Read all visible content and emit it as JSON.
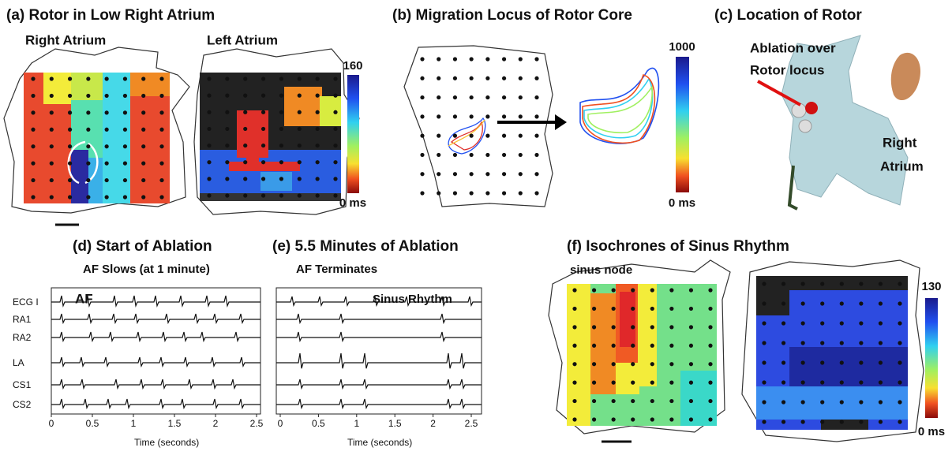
{
  "panel_a": {
    "title": "(a)  Rotor in Low Right Atrium",
    "map_left_label": "Right Atrium",
    "map_right_label": "Left Atrium",
    "colorbar_max": "160",
    "colorbar_min": "0 ms"
  },
  "panel_b": {
    "title": "(b)  Migration Locus of Rotor Core",
    "colorbar_max": "1000",
    "colorbar_min": "0 ms"
  },
  "panel_c": {
    "title": "(c)  Location of Rotor",
    "annotation": [
      "Ablation over",
      "Rotor locus"
    ],
    "chamber_label": [
      "Right",
      "Atrium"
    ]
  },
  "panel_d": {
    "title": "(d)  Start of Ablation",
    "subtitle": "AF Slows (at 1 minute)",
    "rhythm_label": "AF",
    "leads": [
      "ECG I",
      "RA1",
      "RA2",
      "LA",
      "CS1",
      "CS2"
    ],
    "x_ticks": [
      0,
      0.5,
      1,
      1.5,
      2,
      2.5
    ],
    "x_label": "Time (seconds)"
  },
  "panel_e": {
    "title": "(e)  5.5 Minutes of Ablation",
    "subtitle": "AF Terminates",
    "rhythm_label": "Sinus Rhythm",
    "x_ticks": [
      0,
      0.5,
      1,
      1.5,
      2,
      2.5
    ],
    "x_label": "Time (seconds)"
  },
  "panel_f": {
    "title": "(f)  Isochrones of Sinus Rhythm",
    "annotation": "sinus node",
    "colorbar_max": "130",
    "colorbar_min": "0 ms"
  }
}
